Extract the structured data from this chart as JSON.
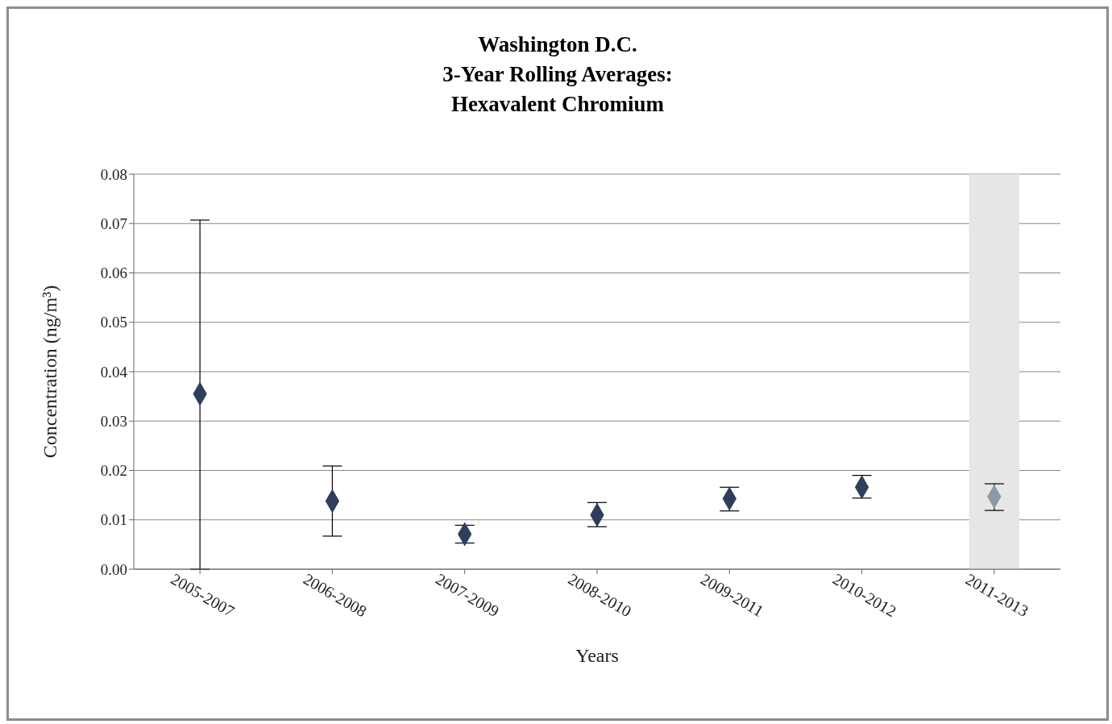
{
  "chart_data": {
    "type": "scatter",
    "title": "Washington D.C.\n3-Year Rolling Averages:\nHexavalent Chromium",
    "xlabel": "Years",
    "ylabel": "Concentration (ng/m³)",
    "categories": [
      "2005-2007",
      "2006-2008",
      "2007-2009",
      "2008-2010",
      "2009-2011",
      "2010-2012",
      "2011-2013"
    ],
    "values": [
      0.0355,
      0.0138,
      0.0071,
      0.011,
      0.0143,
      0.0166,
      0.0147
    ],
    "colors": [
      "#2e3f5c",
      "#2e3f5c",
      "#2e3f5c",
      "#2e3f5c",
      "#2e3f5c",
      "#2e3f5c",
      "#8e98a8"
    ],
    "errors": [
      [
        0,
        0.0707
      ],
      [
        0.0067,
        0.0209
      ],
      [
        0.0053,
        0.0089
      ],
      [
        0.0086,
        0.0135
      ],
      [
        0.0118,
        0.0166
      ],
      [
        0.0144,
        0.019
      ],
      [
        0.0119,
        0.0173
      ]
    ],
    "ylim": [
      0,
      0.08
    ],
    "yticks": [
      {
        "value": 0,
        "label": "0.00"
      },
      0.01,
      0.02,
      0.03,
      0.04,
      0.05,
      0.06,
      0.07,
      0.08
    ],
    "bands": [
      {
        "axis": "x",
        "from": "2011-2013",
        "to": "2011-2013",
        "color": "#e6e6e6"
      }
    ],
    "grid": "y",
    "marker": "diamond"
  }
}
